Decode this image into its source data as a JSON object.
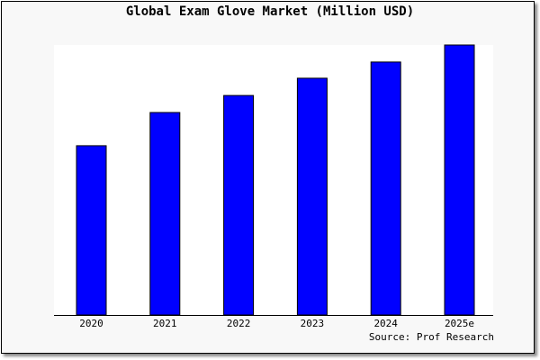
{
  "chart_data": {
    "type": "bar",
    "title": "Global Exam Glove Market (Million USD)",
    "categories": [
      "2020",
      "2021",
      "2022",
      "2023",
      "2024",
      "2025e"
    ],
    "values": [
      0.627,
      0.75,
      0.813,
      0.877,
      0.937,
      1.0
    ],
    "value_note": "relative to 2025e; no y-axis values printed",
    "ylim": [
      0,
      1
    ],
    "xlabel": "",
    "ylabel": "",
    "grid": false,
    "bar_color": "#0000ff",
    "source": "Source: Prof Research"
  }
}
